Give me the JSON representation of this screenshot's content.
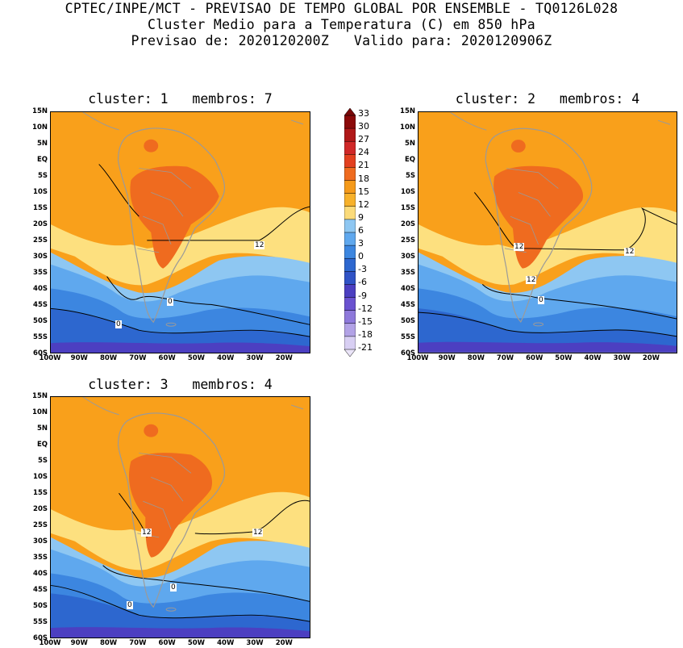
{
  "header": {
    "line1": "CPTEC/INPE/MCT - PREVISAO DE TEMPO GLOBAL POR ENSEMBLE - TQ0126L028",
    "line2": "Cluster Medio para a Temperatura (C) em 850 hPa",
    "line3": "Previsao de: 2020120200Z   Valido para: 2020120906Z"
  },
  "panels": [
    {
      "title": "cluster: 1   membros: 7",
      "contour_labels": [
        "12",
        "0",
        "0"
      ]
    },
    {
      "title": "cluster: 2   membros: 4",
      "contour_labels": [
        "12",
        "12",
        "12",
        "0"
      ]
    },
    {
      "title": "cluster: 3   membros: 4",
      "contour_labels": [
        "12",
        "12",
        "0",
        "0"
      ]
    }
  ],
  "axes": {
    "lat_ticks": [
      "15N",
      "10N",
      "5N",
      "EQ",
      "5S",
      "10S",
      "15S",
      "20S",
      "25S",
      "30S",
      "35S",
      "40S",
      "45S",
      "50S",
      "55S",
      "60S"
    ],
    "lon_ticks": [
      "100W",
      "90W",
      "80W",
      "70W",
      "60W",
      "50W",
      "40W",
      "30W",
      "20W"
    ]
  },
  "colorbar": {
    "labels": [
      "33",
      "30",
      "27",
      "24",
      "21",
      "18",
      "15",
      "12",
      "9",
      "6",
      "3",
      "0",
      "-3",
      "-6",
      "-9",
      "-12",
      "-15",
      "-18",
      "-21"
    ],
    "colors": [
      "#8B0A0A",
      "#B01818",
      "#D02828",
      "#E3401F",
      "#EF6B1F",
      "#F59A1A",
      "#F7B12A",
      "#FBDB7A",
      "#8EC7F2",
      "#5FA8EE",
      "#3C86E0",
      "#2D67CF",
      "#3053C6",
      "#4C3FC1",
      "#6A52D0",
      "#8E79DB",
      "#B2A2E6",
      "#D8CFF3"
    ]
  },
  "colors": {
    "warm_orange": "#F9A01B",
    "hot_orange": "#EF6B1F",
    "light_yellow": "#FDE07F",
    "light_blue": "#8EC7F2",
    "mid_blue": "#5FA8EE",
    "blue": "#3C86E0",
    "dark_blue": "#2D67CF",
    "purple": "#4C3FC1",
    "land_line": "#9a9a9a"
  }
}
